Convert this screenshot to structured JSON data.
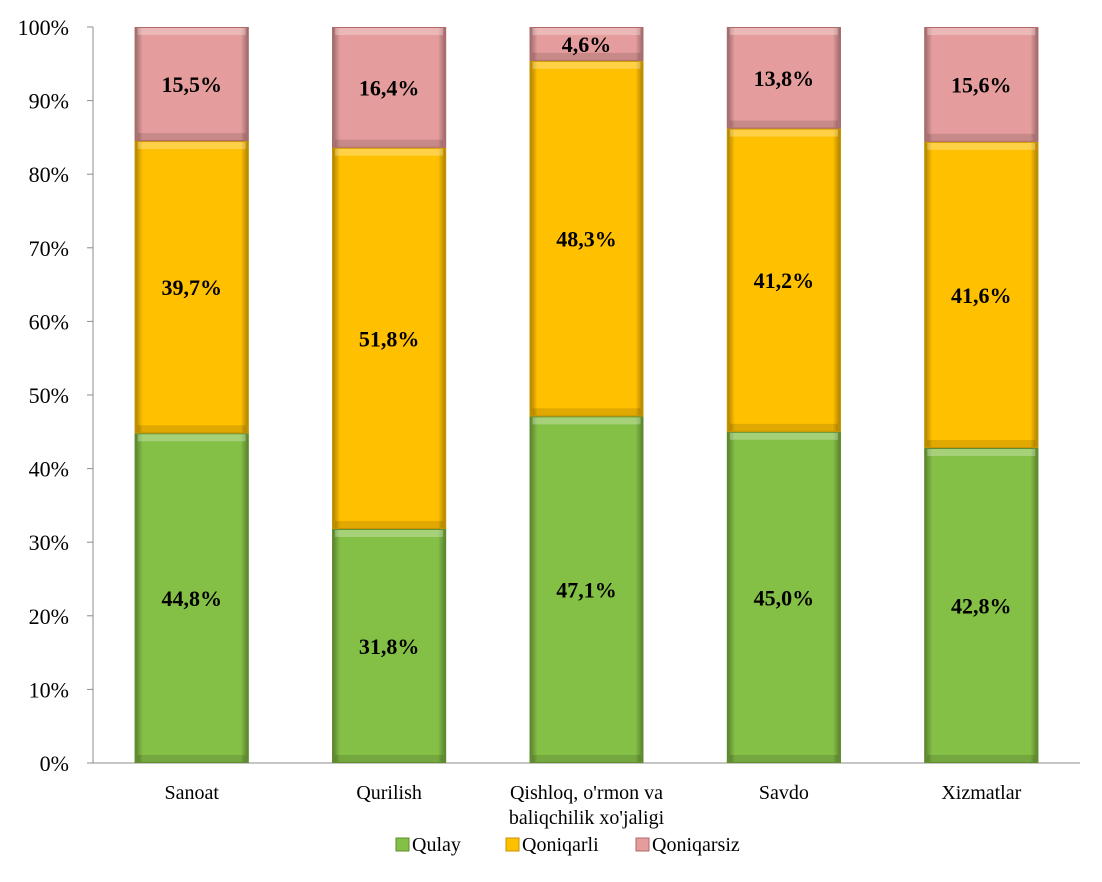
{
  "chart_data": {
    "type": "bar",
    "stacked": true,
    "percent_axis": true,
    "categories": [
      [
        "Sanoat"
      ],
      [
        "Qurilish"
      ],
      [
        "Qishloq, o'rmon va",
        "baliqchilik xo'jaligi"
      ],
      [
        "Savdo"
      ],
      [
        "Xizmatlar"
      ]
    ],
    "series": [
      {
        "name": "Qulay",
        "color": "#84bf46",
        "edge": "#5f8e2d",
        "values": [
          44.8,
          31.8,
          47.1,
          45.0,
          42.8
        ],
        "labels": [
          "44,8%",
          "31,8%",
          "47,1%",
          "45,0%",
          "42,8%"
        ]
      },
      {
        "name": "Qoniqarli",
        "color": "#ffc000",
        "edge": "#c99500",
        "values": [
          39.7,
          51.8,
          48.3,
          41.2,
          41.6
        ],
        "labels": [
          "39,7%",
          "51,8%",
          "48,3%",
          "41,2%",
          "41,6%"
        ]
      },
      {
        "name": "Qoniqarsiz",
        "color": "#e49c9c",
        "edge": "#b06a6a",
        "values": [
          15.5,
          16.4,
          4.6,
          13.8,
          15.6
        ],
        "labels": [
          "15,5%",
          "16,4%",
          "4,6%",
          "13,8%",
          "15,6%"
        ]
      }
    ],
    "yticks": [
      "0%",
      "10%",
      "20%",
      "30%",
      "40%",
      "50%",
      "60%",
      "70%",
      "80%",
      "90%",
      "100%"
    ],
    "ylim": [
      0,
      100
    ],
    "legend_position": "bottom",
    "grid": false
  }
}
